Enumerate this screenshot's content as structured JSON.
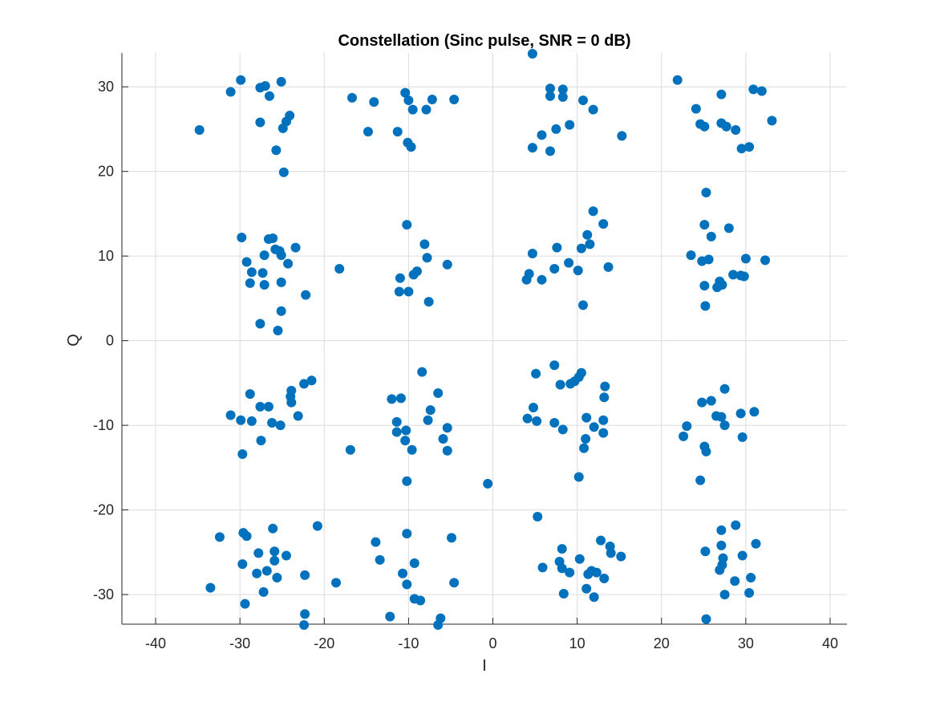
{
  "chart_data": {
    "type": "scatter",
    "title": "Constellation (Sinc pulse, SNR = 0 dB)",
    "xlabel": "I",
    "ylabel": "Q",
    "xlim": [
      -44,
      42
    ],
    "ylim": [
      -33.5,
      34
    ],
    "xticks": [
      -40,
      -30,
      -20,
      -10,
      0,
      10,
      20,
      30,
      40
    ],
    "yticks": [
      -30,
      -20,
      -10,
      0,
      10,
      20,
      30
    ],
    "grid": true,
    "marker_color": "#0072BD",
    "series": [
      {
        "points": [
          [
            -34.8,
            24.9
          ],
          [
            -31.1,
            29.4
          ],
          [
            -29.9,
            30.8
          ],
          [
            -27.6,
            29.9
          ],
          [
            -27.0,
            30.1
          ],
          [
            -26.5,
            28.9
          ],
          [
            -25.1,
            30.6
          ],
          [
            -27.6,
            25.8
          ],
          [
            -24.1,
            26.6
          ],
          [
            -24.5,
            25.9
          ],
          [
            -24.9,
            25.1
          ],
          [
            -25.7,
            22.5
          ],
          [
            -24.8,
            19.9
          ],
          [
            -16.7,
            28.7
          ],
          [
            -14.1,
            28.2
          ],
          [
            -14.8,
            24.7
          ],
          [
            -10.4,
            29.3
          ],
          [
            -10.0,
            28.4
          ],
          [
            -9.5,
            27.3
          ],
          [
            -7.9,
            27.3
          ],
          [
            -7.2,
            28.5
          ],
          [
            -4.6,
            28.5
          ],
          [
            -11.3,
            24.7
          ],
          [
            -10.1,
            23.4
          ],
          [
            -9.7,
            22.9
          ],
          [
            4.7,
            33.9
          ],
          [
            6.8,
            29.8
          ],
          [
            8.3,
            29.7
          ],
          [
            6.8,
            28.9
          ],
          [
            8.3,
            28.8
          ],
          [
            10.7,
            28.4
          ],
          [
            11.9,
            27.3
          ],
          [
            7.5,
            25.0
          ],
          [
            9.1,
            25.5
          ],
          [
            5.8,
            24.3
          ],
          [
            4.7,
            22.8
          ],
          [
            6.8,
            22.4
          ],
          [
            15.3,
            24.2
          ],
          [
            21.9,
            30.8
          ],
          [
            27.1,
            29.1
          ],
          [
            30.9,
            29.7
          ],
          [
            31.9,
            29.5
          ],
          [
            24.1,
            27.4
          ],
          [
            24.6,
            25.6
          ],
          [
            25.1,
            25.3
          ],
          [
            27.1,
            25.7
          ],
          [
            27.7,
            25.3
          ],
          [
            28.8,
            24.9
          ],
          [
            29.5,
            22.7
          ],
          [
            30.4,
            22.9
          ],
          [
            33.1,
            26.0
          ],
          [
            -29.8,
            12.2
          ],
          [
            -29.2,
            9.3
          ],
          [
            -28.6,
            8.1
          ],
          [
            -28.8,
            6.8
          ],
          [
            -27.1,
            10.1
          ],
          [
            -26.6,
            12.0
          ],
          [
            -26.1,
            12.1
          ],
          [
            -25.8,
            10.8
          ],
          [
            -25.3,
            10.6
          ],
          [
            -25.1,
            10.1
          ],
          [
            -24.3,
            9.1
          ],
          [
            -23.4,
            11.0
          ],
          [
            -27.3,
            8.0
          ],
          [
            -27.1,
            6.6
          ],
          [
            -25.1,
            6.9
          ],
          [
            -25.1,
            3.5
          ],
          [
            -27.6,
            2.0
          ],
          [
            -25.5,
            1.2
          ],
          [
            -22.2,
            5.4
          ],
          [
            -18.2,
            8.5
          ],
          [
            -10.2,
            13.7
          ],
          [
            -8.1,
            11.4
          ],
          [
            -7.8,
            9.8
          ],
          [
            -9.0,
            8.2
          ],
          [
            -9.4,
            7.8
          ],
          [
            -11.0,
            7.4
          ],
          [
            -11.1,
            5.8
          ],
          [
            -10.0,
            5.8
          ],
          [
            -7.6,
            4.6
          ],
          [
            -5.4,
            9.0
          ],
          [
            11.9,
            15.3
          ],
          [
            13.1,
            13.8
          ],
          [
            4.7,
            10.3
          ],
          [
            7.6,
            11.0
          ],
          [
            9.0,
            9.2
          ],
          [
            10.5,
            10.9
          ],
          [
            11.2,
            12.5
          ],
          [
            11.5,
            11.4
          ],
          [
            13.7,
            8.7
          ],
          [
            10.1,
            8.3
          ],
          [
            7.3,
            8.5
          ],
          [
            4.3,
            7.9
          ],
          [
            4.0,
            7.2
          ],
          [
            5.8,
            7.2
          ],
          [
            10.7,
            4.2
          ],
          [
            25.3,
            17.5
          ],
          [
            25.1,
            13.7
          ],
          [
            25.9,
            12.3
          ],
          [
            28.0,
            13.3
          ],
          [
            23.5,
            10.1
          ],
          [
            24.8,
            9.4
          ],
          [
            25.6,
            9.6
          ],
          [
            26.9,
            7.0
          ],
          [
            26.6,
            6.3
          ],
          [
            27.2,
            6.6
          ],
          [
            25.1,
            6.5
          ],
          [
            28.5,
            7.8
          ],
          [
            29.4,
            7.7
          ],
          [
            29.8,
            7.6
          ],
          [
            30.0,
            9.7
          ],
          [
            32.3,
            9.5
          ],
          [
            25.2,
            4.1
          ],
          [
            -21.5,
            -4.7
          ],
          [
            -22.4,
            -5.1
          ],
          [
            -23.9,
            -5.9
          ],
          [
            -24.0,
            -6.6
          ],
          [
            -23.9,
            -7.3
          ],
          [
            -28.8,
            -6.3
          ],
          [
            -31.1,
            -8.8
          ],
          [
            -29.9,
            -9.4
          ],
          [
            -28.6,
            -9.5
          ],
          [
            -27.6,
            -7.8
          ],
          [
            -26.6,
            -7.8
          ],
          [
            -26.2,
            -9.7
          ],
          [
            -25.2,
            -10.0
          ],
          [
            -23.1,
            -8.9
          ],
          [
            -27.5,
            -11.8
          ],
          [
            -29.7,
            -13.4
          ],
          [
            -8.4,
            -3.7
          ],
          [
            -6.5,
            -6.2
          ],
          [
            -12.0,
            -6.9
          ],
          [
            -10.9,
            -6.8
          ],
          [
            -7.4,
            -8.2
          ],
          [
            -11.4,
            -9.6
          ],
          [
            -7.7,
            -9.4
          ],
          [
            -11.4,
            -10.8
          ],
          [
            -10.3,
            -10.6
          ],
          [
            -10.4,
            -11.8
          ],
          [
            -9.6,
            -12.9
          ],
          [
            -5.9,
            -11.6
          ],
          [
            -5.4,
            -10.3
          ],
          [
            -5.4,
            -13.0
          ],
          [
            -10.2,
            -16.6
          ],
          [
            -16.9,
            -12.9
          ],
          [
            -0.6,
            -16.9
          ],
          [
            7.3,
            -2.9
          ],
          [
            10.5,
            -3.8
          ],
          [
            10.2,
            -4.3
          ],
          [
            9.7,
            -4.8
          ],
          [
            9.2,
            -5.1
          ],
          [
            13.3,
            -5.4
          ],
          [
            5.1,
            -3.9
          ],
          [
            8.0,
            -5.2
          ],
          [
            4.8,
            -7.9
          ],
          [
            13.2,
            -6.7
          ],
          [
            4.1,
            -9.2
          ],
          [
            5.2,
            -9.5
          ],
          [
            7.3,
            -9.7
          ],
          [
            8.3,
            -10.5
          ],
          [
            11.1,
            -9.1
          ],
          [
            13.1,
            -9.4
          ],
          [
            12.0,
            -10.2
          ],
          [
            11.0,
            -11.6
          ],
          [
            13.1,
            -10.9
          ],
          [
            10.8,
            -12.7
          ],
          [
            10.2,
            -16.1
          ],
          [
            27.5,
            -5.7
          ],
          [
            24.8,
            -7.3
          ],
          [
            25.9,
            -7.1
          ],
          [
            29.4,
            -8.6
          ],
          [
            31.0,
            -8.4
          ],
          [
            26.5,
            -8.9
          ],
          [
            27.1,
            -9.0
          ],
          [
            27.5,
            -10.0
          ],
          [
            29.6,
            -11.4
          ],
          [
            23.0,
            -10.1
          ],
          [
            22.6,
            -11.3
          ],
          [
            25.1,
            -12.5
          ],
          [
            25.3,
            -13.1
          ],
          [
            24.6,
            -16.5
          ],
          [
            -32.4,
            -23.2
          ],
          [
            -29.6,
            -22.7
          ],
          [
            -29.2,
            -23.1
          ],
          [
            -27.8,
            -25.1
          ],
          [
            -29.7,
            -26.4
          ],
          [
            -28.0,
            -27.5
          ],
          [
            -26.1,
            -22.2
          ],
          [
            -25.9,
            -24.9
          ],
          [
            -24.5,
            -25.4
          ],
          [
            -25.9,
            -26.0
          ],
          [
            -26.8,
            -27.2
          ],
          [
            -25.6,
            -28.0
          ],
          [
            -22.3,
            -27.7
          ],
          [
            -20.8,
            -21.9
          ],
          [
            -27.2,
            -29.7
          ],
          [
            -29.4,
            -31.1
          ],
          [
            -33.5,
            -29.2
          ],
          [
            -22.3,
            -32.3
          ],
          [
            -22.4,
            -33.6
          ],
          [
            -18.6,
            -28.6
          ],
          [
            -10.2,
            -22.8
          ],
          [
            -13.9,
            -23.8
          ],
          [
            -13.4,
            -25.9
          ],
          [
            -9.3,
            -26.3
          ],
          [
            -10.7,
            -27.5
          ],
          [
            -10.2,
            -28.8
          ],
          [
            -4.9,
            -23.3
          ],
          [
            -4.6,
            -28.6
          ],
          [
            -9.3,
            -30.5
          ],
          [
            -8.6,
            -30.7
          ],
          [
            -12.2,
            -32.6
          ],
          [
            -6.2,
            -32.8
          ],
          [
            -6.5,
            -33.6
          ],
          [
            5.3,
            -20.8
          ],
          [
            8.2,
            -24.6
          ],
          [
            5.9,
            -26.8
          ],
          [
            7.9,
            -26.1
          ],
          [
            8.2,
            -26.9
          ],
          [
            10.3,
            -25.8
          ],
          [
            9.1,
            -27.4
          ],
          [
            11.3,
            -27.6
          ],
          [
            11.7,
            -27.2
          ],
          [
            12.3,
            -27.4
          ],
          [
            12.8,
            -23.6
          ],
          [
            13.9,
            -24.3
          ],
          [
            14.0,
            -25.1
          ],
          [
            15.2,
            -25.5
          ],
          [
            13.2,
            -28.1
          ],
          [
            11.1,
            -29.3
          ],
          [
            12.0,
            -30.3
          ],
          [
            8.4,
            -29.9
          ],
          [
            28.8,
            -21.8
          ],
          [
            27.1,
            -22.4
          ],
          [
            27.1,
            -24.2
          ],
          [
            31.2,
            -24.0
          ],
          [
            25.2,
            -24.9
          ],
          [
            27.3,
            -25.7
          ],
          [
            29.6,
            -25.4
          ],
          [
            27.2,
            -26.5
          ],
          [
            26.9,
            -27.1
          ],
          [
            28.7,
            -28.4
          ],
          [
            30.6,
            -28.0
          ],
          [
            27.5,
            -30.0
          ],
          [
            30.4,
            -29.8
          ],
          [
            25.3,
            -32.9
          ]
        ]
      }
    ]
  }
}
